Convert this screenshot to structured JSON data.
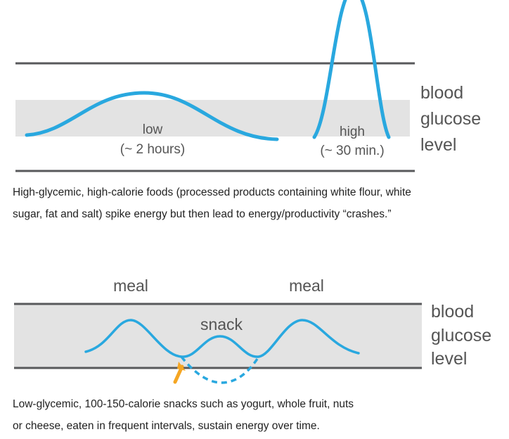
{
  "top_diagram": {
    "side_label": [
      "blood",
      "glucose",
      "level"
    ],
    "low_label": "low",
    "low_duration": "(~ 2 hours)",
    "high_label": "high",
    "high_duration": "(~ 30 min.)",
    "caption_lines": [
      "High-glycemic, high-calorie foods (processed products containing white flour, white",
      "sugar, fat and salt) spike energy but then lead to energy/productivity “crashes.”"
    ]
  },
  "bottom_diagram": {
    "meal_label_1": "meal",
    "meal_label_2": "meal",
    "snack_label": "snack",
    "side_label": [
      "blood",
      "glucose",
      "level"
    ],
    "caption_lines": [
      "Low-glycemic, 100-150-calorie snacks such as yogurt, whole fruit, nuts",
      "or cheese, eaten in frequent intervals, sustain energy over time."
    ]
  },
  "colors": {
    "curve": "#29a8df",
    "band": "#e3e3e3",
    "line": "#58595b",
    "arrow": "#f5a623"
  }
}
